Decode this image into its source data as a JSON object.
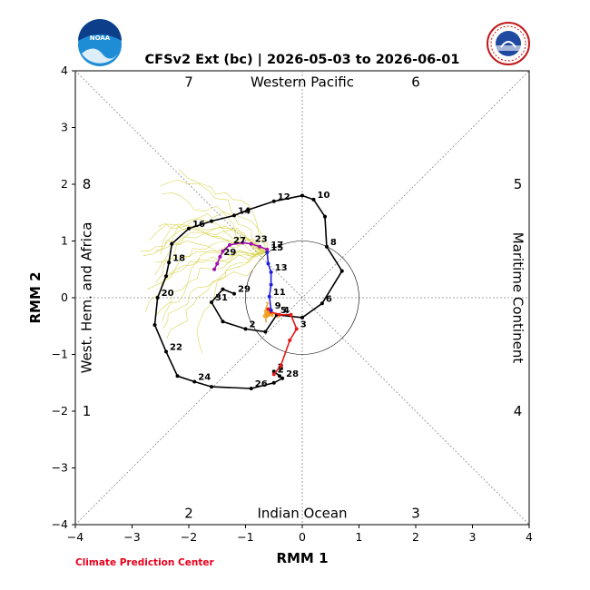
{
  "chart_data": {
    "type": "scatter",
    "title": "CFSv2 Ext (bc) | 2026-05-03 to 2026-06-01",
    "xlabel": "RMM 1",
    "ylabel": "RMM 2",
    "xlim": [
      -4,
      4
    ],
    "ylim": [
      -4,
      4
    ],
    "x_ticks": [
      "−4",
      "−3",
      "−2",
      "−1",
      "0",
      "1",
      "2",
      "3",
      "4"
    ],
    "y_ticks": [
      "−4",
      "−3",
      "−2",
      "−1",
      "0",
      "1",
      "2",
      "3",
      "4"
    ],
    "phase_labels": [
      {
        "text": "1",
        "x": -3.8,
        "y": -2.0
      },
      {
        "text": "2",
        "x": -2.0,
        "y": -3.8
      },
      {
        "text": "3",
        "x": 2.0,
        "y": -3.8
      },
      {
        "text": "4",
        "x": 3.8,
        "y": -2.0
      },
      {
        "text": "5",
        "x": 3.8,
        "y": 2.0
      },
      {
        "text": "6",
        "x": 2.0,
        "y": 3.8
      },
      {
        "text": "7",
        "x": -2.0,
        "y": 3.8
      },
      {
        "text": "8",
        "x": -3.8,
        "y": 2.0
      }
    ],
    "regions": {
      "top": "Western Pacific",
      "bottom": "Indian Ocean",
      "left": "West. Hem. and Africa",
      "right": "Maritime Continent"
    },
    "credit": "Climate Prediction Center",
    "series": [
      {
        "color": "#000000",
        "points": [
          {
            "x": -0.5,
            "y": -1.3,
            "label": "2"
          },
          {
            "x": -0.4,
            "y": -1.38,
            "label": ""
          },
          {
            "x": -0.35,
            "y": -1.42,
            "label": "28"
          },
          {
            "x": -0.5,
            "y": -1.5,
            "label": ""
          },
          {
            "x": -0.9,
            "y": -1.6,
            "label": "26"
          },
          {
            "x": -1.6,
            "y": -1.57,
            "label": ""
          },
          {
            "x": -1.9,
            "y": -1.48,
            "label": "24"
          },
          {
            "x": -2.2,
            "y": -1.38,
            "label": ""
          },
          {
            "x": -2.4,
            "y": -0.95,
            "label": "22"
          },
          {
            "x": -2.6,
            "y": -0.48,
            "label": ""
          },
          {
            "x": -2.55,
            "y": 0.0,
            "label": "20"
          },
          {
            "x": -2.4,
            "y": 0.38,
            "label": ""
          },
          {
            "x": -2.35,
            "y": 0.62,
            "label": "18"
          },
          {
            "x": -2.3,
            "y": 0.95,
            "label": ""
          },
          {
            "x": -2.0,
            "y": 1.22,
            "label": "16"
          },
          {
            "x": -1.6,
            "y": 1.35,
            "label": ""
          },
          {
            "x": -1.2,
            "y": 1.45,
            "label": "14"
          },
          {
            "x": -0.95,
            "y": 1.55,
            "label": ""
          },
          {
            "x": -0.5,
            "y": 1.7,
            "label": "12"
          },
          {
            "x": 0.0,
            "y": 1.8,
            "label": ""
          },
          {
            "x": 0.2,
            "y": 1.73,
            "label": "10"
          },
          {
            "x": 0.4,
            "y": 1.43,
            "label": ""
          },
          {
            "x": 0.43,
            "y": 0.9,
            "label": "8"
          },
          {
            "x": 0.7,
            "y": 0.47,
            "label": ""
          },
          {
            "x": 0.35,
            "y": -0.1,
            "label": "6"
          },
          {
            "x": 0.0,
            "y": -0.35,
            "label": ""
          },
          {
            "x": -0.45,
            "y": -0.3,
            "label": "5"
          },
          {
            "x": -0.65,
            "y": -0.6,
            "label": ""
          },
          {
            "x": -1.0,
            "y": -0.55,
            "label": "2"
          },
          {
            "x": -1.4,
            "y": -0.42,
            "label": ""
          },
          {
            "x": -1.6,
            "y": -0.08,
            "label": "31"
          },
          {
            "x": -1.4,
            "y": 0.15,
            "label": ""
          },
          {
            "x": -1.2,
            "y": 0.07,
            "label": "29"
          }
        ]
      },
      {
        "color": "#e31a1c",
        "points": [
          {
            "x": -0.5,
            "y": -1.35,
            "label": "2"
          },
          {
            "x": -0.38,
            "y": -1.2,
            "label": ""
          },
          {
            "x": -0.22,
            "y": -0.75,
            "label": ""
          },
          {
            "x": -0.1,
            "y": -0.55,
            "label": "3"
          },
          {
            "x": -0.2,
            "y": -0.3,
            "label": ""
          },
          {
            "x": -0.4,
            "y": -0.3,
            "label": "4"
          },
          {
            "x": -0.55,
            "y": -0.25,
            "label": ""
          },
          {
            "x": -0.6,
            "y": -0.2,
            "label": ""
          }
        ]
      },
      {
        "color": "#1f1fe0",
        "points": [
          {
            "x": -0.55,
            "y": -0.22,
            "label": "9"
          },
          {
            "x": -0.58,
            "y": 0.02,
            "label": "11"
          },
          {
            "x": -0.55,
            "y": 0.23,
            "label": ""
          },
          {
            "x": -0.55,
            "y": 0.45,
            "label": "13"
          },
          {
            "x": -0.6,
            "y": 0.6,
            "label": ""
          },
          {
            "x": -0.62,
            "y": 0.8,
            "label": "15"
          }
        ]
      },
      {
        "color": "#a010b0",
        "points": [
          {
            "x": -0.62,
            "y": 0.85,
            "label": "17"
          },
          {
            "x": -0.75,
            "y": 0.9,
            "label": ""
          },
          {
            "x": -0.9,
            "y": 0.95,
            "label": "23"
          },
          {
            "x": -1.05,
            "y": 0.97,
            "label": ""
          },
          {
            "x": -1.28,
            "y": 0.93,
            "label": "27"
          },
          {
            "x": -1.4,
            "y": 0.82,
            "label": ""
          },
          {
            "x": -1.45,
            "y": 0.72,
            "label": "29"
          },
          {
            "x": -1.5,
            "y": 0.6,
            "label": ""
          },
          {
            "x": -1.55,
            "y": 0.5,
            "label": ""
          }
        ]
      }
    ]
  }
}
